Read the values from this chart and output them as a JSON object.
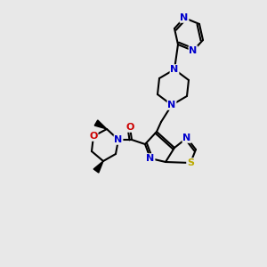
{
  "bg_color": "#e8e8e8",
  "atom_colors": {
    "N": "#0000cc",
    "O": "#cc0000",
    "S": "#bbaa00"
  },
  "bond_color": "#000000",
  "bond_width": 1.5
}
